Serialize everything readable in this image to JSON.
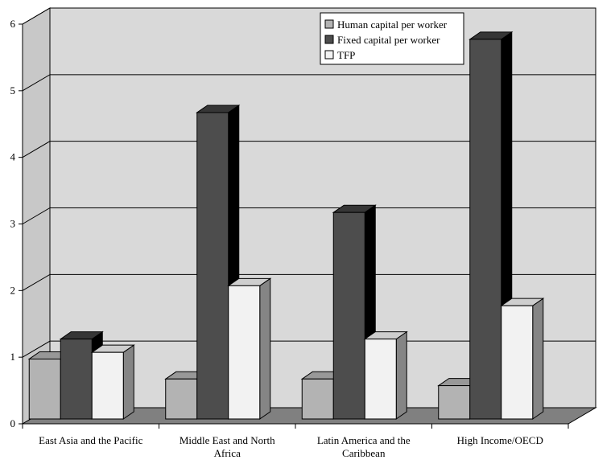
{
  "chart_data": {
    "type": "bar",
    "style": "3d-clustered-column",
    "categories": [
      [
        "East Asia and the Pacific"
      ],
      [
        "Middle East and North",
        "Africa"
      ],
      [
        "Latin America and the",
        "Caribbean"
      ],
      [
        "High Income/OECD"
      ]
    ],
    "series": [
      {
        "name": "Human capital per worker",
        "values": [
          0.9,
          0.6,
          0.6,
          0.5
        ],
        "color": "#b3b3b3"
      },
      {
        "name": "Fixed capital per worker",
        "values": [
          1.2,
          4.6,
          3.1,
          5.7
        ],
        "color": "#4d4d4d"
      },
      {
        "name": "TFP",
        "values": [
          1.0,
          2.0,
          1.2,
          1.7
        ],
        "color": "#f2f2f2"
      }
    ],
    "ylim": [
      0,
      6
    ],
    "yticks": [
      "0",
      "1",
      "2",
      "3",
      "4",
      "5",
      "6"
    ],
    "grid": true,
    "legend": "top-right",
    "wall_color": "#d9d9d9",
    "floor_color": "#808080"
  }
}
